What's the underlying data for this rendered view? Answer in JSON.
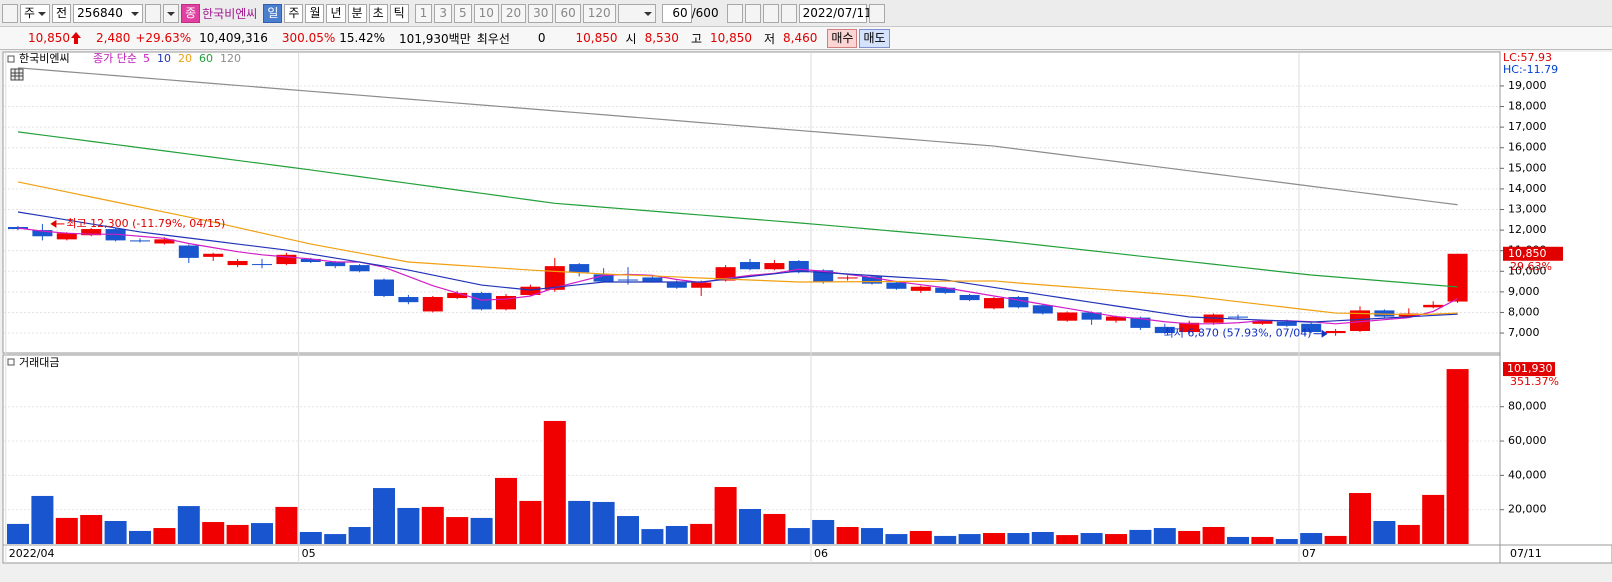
{
  "toolbar": {
    "market": "주",
    "view": "전",
    "code": "256840",
    "badge": "종",
    "name": "한국비엔씨",
    "periods": [
      "일",
      "주",
      "월",
      "년",
      "분",
      "초",
      "틱"
    ],
    "intervals": [
      "1",
      "3",
      "5",
      "10",
      "20",
      "30",
      "60",
      "120"
    ],
    "count": "60",
    "count_max": "/600",
    "date": "2022/07/11"
  },
  "quote": {
    "price": "10,850",
    "change": "2,480",
    "change_rate": "+29.63%",
    "volume": "10,409,316",
    "volume_ratio": "300.05%",
    "turnover": "15.42%",
    "amount": "101,930백만",
    "best_label": "최우선",
    "best_qty": "0",
    "best_price": "10,850",
    "open_label": "시",
    "open": "8,530",
    "high_label": "고",
    "high": "10,850",
    "low_label": "저",
    "low": "8,460",
    "buy": "매수",
    "sell": "매도"
  },
  "chart_data": [
    {
      "type": "candlestick",
      "title": "한국비엔씨",
      "ma_label": "종가 단순",
      "up_color": "#f00000",
      "down_color": "#1a55d0",
      "categories": [
        "2022/04",
        null,
        null,
        null,
        null,
        null,
        null,
        null,
        null,
        null,
        null,
        null,
        "05",
        null,
        null,
        null,
        null,
        null,
        null,
        null,
        null,
        null,
        null,
        null,
        null,
        null,
        null,
        null,
        null,
        null,
        null,
        null,
        null,
        "06",
        null,
        null,
        null,
        null,
        null,
        null,
        null,
        null,
        null,
        null,
        null,
        null,
        null,
        null,
        null,
        null,
        null,
        null,
        null,
        "07",
        null,
        null,
        null,
        null,
        null,
        null
      ],
      "cursor_label": "07/11",
      "open": [
        12150,
        12000,
        11550,
        11750,
        12050,
        11500,
        11350,
        11250,
        10700,
        10300,
        10350,
        10350,
        10600,
        10450,
        10300,
        9600,
        8750,
        8050,
        8700,
        8950,
        8150,
        8850,
        9100,
        10350,
        9850,
        9600,
        9700,
        9450,
        9200,
        9550,
        10450,
        10100,
        10500,
        10050,
        9650,
        9750,
        9450,
        9050,
        9200,
        8850,
        8200,
        8750,
        8350,
        7600,
        8000,
        7600,
        7750,
        7300,
        7050,
        7500,
        7800,
        7450,
        7550,
        7450,
        7000,
        7100,
        8100,
        7800,
        8250,
        8530
      ],
      "high": [
        12200,
        12300,
        11900,
        12100,
        12100,
        11600,
        11650,
        11300,
        10900,
        10600,
        10600,
        10900,
        10650,
        10500,
        10350,
        9650,
        8850,
        8800,
        9050,
        9000,
        8900,
        9350,
        10650,
        10400,
        10150,
        10200,
        9750,
        9550,
        9550,
        10300,
        10600,
        10550,
        10550,
        10100,
        9800,
        9800,
        9500,
        9300,
        9250,
        8900,
        8750,
        8800,
        8400,
        8050,
        8050,
        7850,
        7800,
        7450,
        7600,
        7950,
        7900,
        7650,
        7650,
        7500,
        7200,
        8300,
        8150,
        8200,
        8550,
        10850
      ],
      "low": [
        12000,
        11500,
        11500,
        11700,
        11450,
        11400,
        11300,
        10400,
        10500,
        10200,
        10150,
        10300,
        10400,
        10150,
        9950,
        8750,
        8400,
        8000,
        8650,
        8100,
        8100,
        8800,
        9000,
        9750,
        9450,
        9350,
        9450,
        9150,
        8800,
        9500,
        10050,
        10050,
        9900,
        9400,
        9550,
        9350,
        9100,
        8950,
        8900,
        8550,
        8150,
        8200,
        7900,
        7550,
        7400,
        7500,
        7150,
        6950,
        6950,
        7400,
        7650,
        7400,
        7300,
        7000,
        6870,
        7050,
        7750,
        7750,
        8200,
        8460
      ],
      "close": [
        12050,
        11700,
        11850,
        12050,
        11500,
        11450,
        11550,
        10650,
        10850,
        10500,
        10350,
        10800,
        10450,
        10250,
        10000,
        8800,
        8500,
        8750,
        8950,
        8150,
        8800,
        9250,
        10250,
        9950,
        9500,
        9550,
        9500,
        9200,
        9450,
        10200,
        10100,
        10400,
        9950,
        9500,
        9700,
        9400,
        9150,
        9250,
        8950,
        8600,
        8700,
        8250,
        7950,
        8000,
        7650,
        7800,
        7250,
        7000,
        7500,
        7900,
        7750,
        7600,
        7350,
        7050,
        7100,
        8100,
        7800,
        7950,
        8370,
        10850
      ],
      "series": [
        {
          "name": "5",
          "color": "#d21cc8",
          "values": [
            12100,
            11950,
            11850,
            11800,
            11800,
            11700,
            11600,
            11350,
            11150,
            10950,
            10800,
            10700,
            10600,
            10450,
            10450,
            10200,
            9750,
            9300,
            8950,
            8600,
            8650,
            8800,
            9200,
            9500,
            9800,
            9850,
            9800,
            9600,
            9450,
            9650,
            9800,
            9900,
            10100,
            10000,
            9850,
            9700,
            9500,
            9350,
            9200,
            9000,
            8800,
            8600,
            8400,
            8200,
            8000,
            7800,
            7700,
            7550,
            7450,
            7450,
            7500,
            7600,
            7600,
            7550,
            7450,
            7550,
            7650,
            7750,
            8050,
            8670
          ]
        },
        {
          "name": "10",
          "color": "#2233b8",
          "values": [
            12880,
            12686,
            12492,
            12298,
            12104,
            11910,
            11763,
            11617,
            11470,
            11323,
            11177,
            11030,
            10836,
            10642,
            10448,
            10254,
            10060,
            9817,
            9573,
            9330,
            9210,
            9090,
            9220,
            9350,
            9480,
            9480,
            9480,
            9480,
            9480,
            9613,
            9745,
            9878,
            10010,
            9938,
            9867,
            9795,
            9723,
            9652,
            9580,
            9398,
            9215,
            9033,
            8850,
            8672,
            8493,
            8315,
            8137,
            7958,
            7780,
            7730,
            7680,
            7630,
            7580,
            7530,
            7595,
            7660,
            7725,
            7790,
            7855,
            7920
          ]
        },
        {
          "name": "20",
          "color": "#f0a010",
          "values": [
            14340,
            14096,
            13852,
            13608,
            13365,
            13121,
            12877,
            12633,
            12390,
            12123,
            11855,
            11588,
            11320,
            11103,
            10885,
            10668,
            10450,
            10372,
            10294,
            10216,
            10138,
            10060,
            9997,
            9933,
            9870,
            9821,
            9773,
            9724,
            9675,
            9626,
            9578,
            9529,
            9480,
            9486,
            9493,
            9499,
            9505,
            9511,
            9518,
            9524,
            9530,
            9430,
            9340,
            9250,
            9160,
            9070,
            8980,
            8890,
            8800,
            8662,
            8523,
            8385,
            8247,
            8108,
            7970,
            7950,
            7920,
            7900,
            7920,
            7970
          ]
        },
        {
          "name": "60",
          "color": "#22a03a",
          "values": [
            16770,
            16616,
            16462,
            16308,
            16154,
            16000,
            15846,
            15692,
            15538,
            15384,
            15230,
            15076,
            14920,
            14758,
            14596,
            14434,
            14272,
            14110,
            13948,
            13786,
            13624,
            13462,
            13300,
            13205,
            13110,
            13015,
            12920,
            12825,
            12730,
            12635,
            12540,
            12445,
            12350,
            12250,
            12146,
            12042,
            11938,
            11834,
            11730,
            11626,
            11520,
            11389,
            11258,
            11127,
            10996,
            10865,
            10734,
            10603,
            10472,
            10341,
            10210,
            10079,
            9948,
            9820,
            9723,
            9626,
            9529,
            9432,
            9335,
            9240
          ]
        },
        {
          "name": "120",
          "color": "#8c8c8c",
          "values": [
            19880,
            19785,
            19690,
            19595,
            19500,
            19405,
            19310,
            19215,
            19120,
            19025,
            18930,
            18835,
            18740,
            18645,
            18550,
            18455,
            18360,
            18265,
            18170,
            18075,
            17980,
            17885,
            17790,
            17695,
            17600,
            17505,
            17410,
            17315,
            17220,
            17125,
            17030,
            16935,
            16840,
            16745,
            16650,
            16555,
            16460,
            16365,
            16270,
            16175,
            16080,
            15930,
            15780,
            15630,
            15480,
            15330,
            15180,
            15030,
            14880,
            14730,
            14580,
            14430,
            14280,
            14130,
            13980,
            13830,
            13680,
            13530,
            13380,
            13230
          ]
        }
      ],
      "ylim": [
        6080,
        20600
      ],
      "yticks": [
        {
          "value": 7000,
          "label": "7,000"
        },
        {
          "value": 8000,
          "label": "8,000"
        },
        {
          "value": 9000,
          "label": "9,000"
        },
        {
          "value": 10000,
          "label": "10,000"
        },
        {
          "value": 11000,
          "label": "11,000"
        },
        {
          "value": 12000,
          "label": "12,000"
        },
        {
          "value": 13000,
          "label": "13,000"
        },
        {
          "value": 14000,
          "label": "14,000"
        },
        {
          "value": 15000,
          "label": "15,000"
        },
        {
          "value": 16000,
          "label": "16,000"
        },
        {
          "value": 17000,
          "label": "17,000"
        },
        {
          "value": 18000,
          "label": "18,000"
        },
        {
          "value": 19000,
          "label": "19,000"
        }
      ],
      "grid": true,
      "high_label": "최고 12,300 (-11.79%, 04/15)",
      "low_label": "최저 6,870 (57.93%, 07/04)",
      "lc_label": "LC:57.93",
      "hc_label": "HC:-11.79",
      "last_label": "10,850",
      "last_change_label": "29.63%"
    },
    {
      "type": "bar",
      "title": "거래대금",
      "values": [
        11700,
        28000,
        15200,
        16900,
        13400,
        7600,
        9300,
        22100,
        12800,
        11100,
        12200,
        21600,
        7000,
        5800,
        9900,
        32600,
        21000,
        21600,
        15700,
        15200,
        38500,
        25100,
        71700,
        25100,
        24500,
        16300,
        8700,
        10500,
        11700,
        33200,
        20400,
        17500,
        9300,
        14000,
        9900,
        9300,
        5800,
        7600,
        4700,
        5800,
        6400,
        6400,
        7000,
        5200,
        6400,
        5800,
        8200,
        9300,
        7600,
        9900,
        4100,
        4100,
        2900,
        6400,
        4700,
        29700,
        13400,
        11100,
        28600,
        101930
      ],
      "ylim": [
        0,
        104300
      ],
      "yticks": [
        {
          "value": 20000,
          "label": "20,000"
        },
        {
          "value": 40000,
          "label": "40,000"
        },
        {
          "value": 60000,
          "label": "60,000"
        },
        {
          "value": 80000,
          "label": "80,000"
        }
      ],
      "grid": true,
      "last_label": "101,930",
      "last_change_label": "351.37%"
    }
  ]
}
